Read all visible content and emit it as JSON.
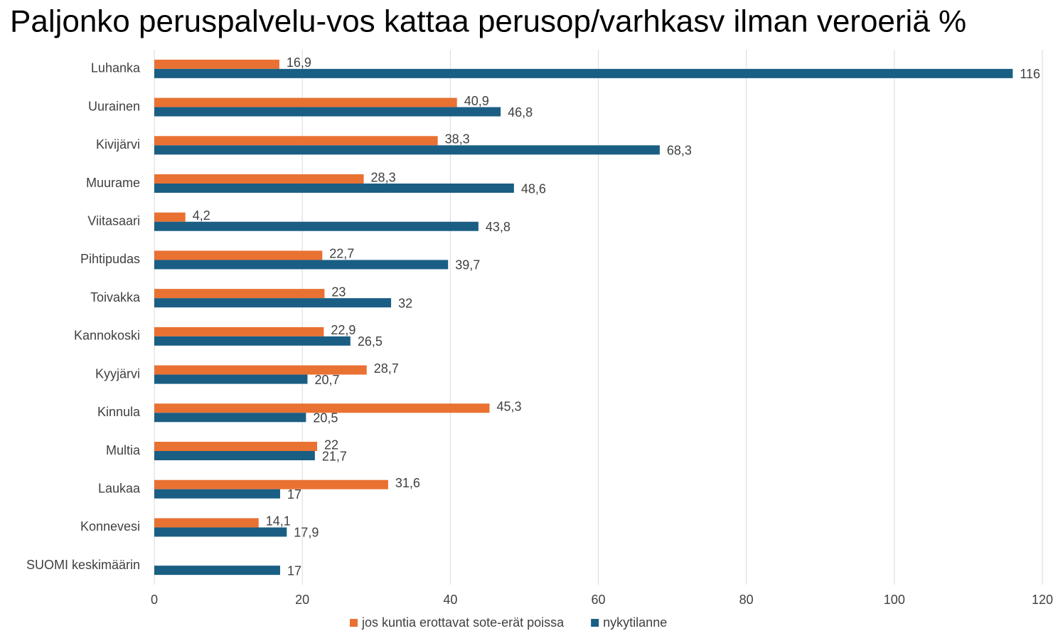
{
  "chart_data": {
    "type": "hbar",
    "title": "Paljonko peruspalvelu-vos kattaa perusop/varhkasv ilman veroeriä %",
    "categories": [
      "Luhanka",
      "Uurainen",
      "Kivijärvi",
      "Muurame",
      "Viitasaari",
      "Pihtipudas",
      "Toivakka",
      "Kannokoski",
      "Kyyjärvi",
      "Kinnula",
      "Multia",
      "Laukaa",
      "Konnevesi",
      "SUOMI keskimäärin"
    ],
    "series": [
      {
        "name": "jos kuntia erottavat sote-erät poissa",
        "color": "#e97132",
        "values": [
          16.9,
          40.9,
          38.3,
          28.3,
          4.2,
          22.7,
          23,
          22.9,
          28.7,
          45.3,
          22,
          31.6,
          14.1,
          null
        ],
        "value_labels": [
          "16,9",
          "40,9",
          "38,3",
          "28,3",
          "4,2",
          "22,7",
          "23",
          "22,9",
          "28,7",
          "45,3",
          "22",
          "31,6",
          "14,1",
          null
        ]
      },
      {
        "name": "nykytilanne",
        "color": "#1a5e84",
        "values": [
          116,
          46.8,
          68.3,
          48.6,
          43.8,
          39.7,
          32,
          26.5,
          20.7,
          20.5,
          21.7,
          17,
          17.9,
          17
        ],
        "value_labels": [
          "116",
          "46,8",
          "68,3",
          "48,6",
          "43,8",
          "39,7",
          "32",
          "26,5",
          "20,7",
          "20,5",
          "21,7",
          "17",
          "17,9",
          "17"
        ]
      }
    ],
    "xlim": [
      0,
      120
    ],
    "xticks": [
      0,
      20,
      40,
      60,
      80,
      100,
      120
    ],
    "grid": true,
    "legend": "bottom"
  }
}
